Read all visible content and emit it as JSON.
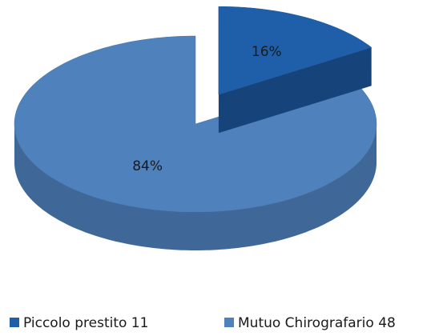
{
  "chart_data": {
    "type": "pie",
    "three_d": true,
    "categories": [
      "Piccolo prestito 11",
      "Mutuo Chirografario 48"
    ],
    "values": [
      16,
      84
    ],
    "value_labels": [
      "16%",
      "84%"
    ],
    "colors": [
      "#1f5fa9",
      "#4f81bd"
    ],
    "legend": "bottom"
  }
}
